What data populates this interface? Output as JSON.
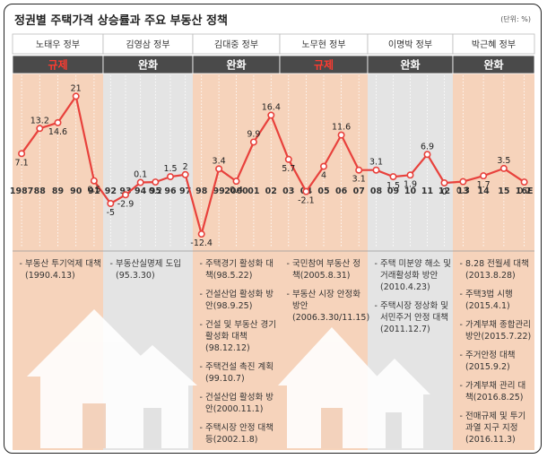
{
  "chart_data": {
    "type": "line",
    "title": "정권별 주택가격 상승률과 주요 부동산 정책",
    "unit": "(단위: %)",
    "categories": [
      "1987",
      "88",
      "89",
      "90",
      "91",
      "92",
      "93",
      "94",
      "95",
      "96",
      "97",
      "98",
      "99",
      "2000",
      "01",
      "02",
      "03",
      "04",
      "05",
      "06",
      "07",
      "08",
      "09",
      "10",
      "11",
      "12",
      "13",
      "14",
      "15",
      "16E"
    ],
    "values": [
      7.1,
      13.2,
      14.6,
      21,
      0.5,
      -5,
      -2.9,
      0.1,
      0.2,
      1.5,
      2,
      -12.4,
      3.4,
      0.4,
      9.9,
      16.4,
      5.7,
      -2.1,
      4,
      11.6,
      3.1,
      3.1,
      1.5,
      1.9,
      6.9,
      0,
      0.3,
      1.7,
      3.5,
      0.2
    ],
    "color": "#e8413c",
    "ylim": [
      -13,
      22
    ],
    "governments": [
      {
        "name": "노태우 정부",
        "stance": "규제",
        "policies": [
          "부동산 투기억제 대책(1990.4.13)"
        ]
      },
      {
        "name": "김영삼 정부",
        "stance": "완화",
        "policies": [
          "부동산실명제 도입(95.3.30)"
        ]
      },
      {
        "name": "김대중 정부",
        "stance": "완화",
        "policies": [
          "주택경기 활성화 대책(98.5.22)",
          "건설산업 활성화 방안(98.9.25)",
          "건설 및 부동산 경기 활성화 대책(98.12.12)",
          "주택건설 촉진 계획(99.10.7)",
          "건설산업 활성화 방안(2000.11.1)",
          "주택시장 안정 대책 등(2002.1.8)"
        ]
      },
      {
        "name": "노무현 정부",
        "stance": "규제",
        "policies": [
          "국민참여 부동산 정책(2005.8.31)",
          "부동산 시장 안정화 방안(2006.3.30/11.15)"
        ]
      },
      {
        "name": "이명박 정부",
        "stance": "완화",
        "policies": [
          "주택 미분양 해소 및 거래활성화 방안(2010.4.23)",
          "주택시장 정상화 및 서민주거 안정 대책(2011.12.7)"
        ]
      },
      {
        "name": "박근혜 정부",
        "stance": "완화",
        "policies": [
          "8.28 전월세 대책(2013.8.28)",
          "주택3법 시행(2015.4.1)",
          "가계부채 종합관리 방안(2015.7.22)",
          "주거안정 대책(2015.9.2)",
          "가계부채 관리 대책(2016.8.25)",
          "전매규제 및 투기 과열 지구 지정(2016.11.3)"
        ]
      }
    ]
  }
}
